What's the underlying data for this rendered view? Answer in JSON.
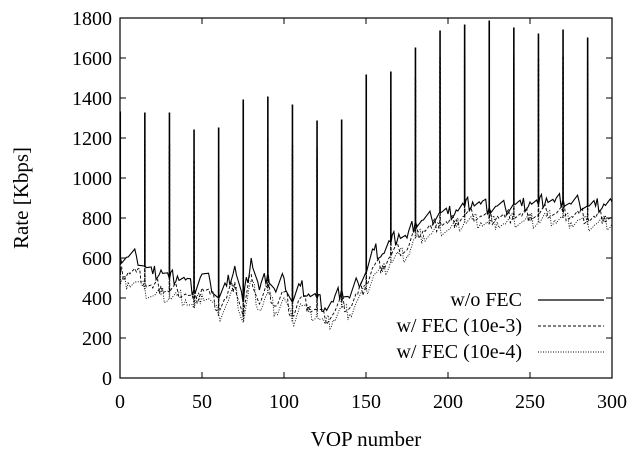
{
  "chart_data": {
    "type": "line",
    "title": "",
    "xlabel": "VOP number",
    "ylabel": "Rate [Kbps]",
    "xlim": [
      0,
      300
    ],
    "ylim": [
      0,
      1800
    ],
    "x_ticks": [
      0,
      50,
      100,
      150,
      200,
      250,
      300
    ],
    "y_ticks": [
      0,
      200,
      400,
      600,
      800,
      1000,
      1200,
      1400,
      1600,
      1800
    ],
    "grid": false,
    "legend_position": "lower-right",
    "spike_positions": [
      0,
      15,
      30,
      45,
      60,
      75,
      90,
      105,
      120,
      135,
      150,
      165,
      180,
      195,
      210,
      225,
      240,
      255,
      270,
      285
    ],
    "series": [
      {
        "name": "w/o FEC",
        "line_style": "solid",
        "color": "#000000",
        "spike_peaks": [
          1330,
          1325,
          1325,
          1240,
          1250,
          1390,
          1405,
          1365,
          1285,
          1290,
          1515,
          1530,
          1650,
          1735,
          1765,
          1785,
          1750,
          1720,
          1740,
          1700
        ],
        "x": [
          0,
          5,
          10,
          15,
          20,
          25,
          30,
          35,
          40,
          45,
          50,
          55,
          60,
          65,
          70,
          75,
          80,
          85,
          90,
          95,
          100,
          105,
          110,
          115,
          120,
          125,
          130,
          135,
          140,
          145,
          150,
          155,
          160,
          165,
          170,
          175,
          180,
          185,
          190,
          195,
          200,
          205,
          210,
          215,
          220,
          225,
          230,
          235,
          240,
          245,
          250,
          255,
          260,
          265,
          270,
          275,
          280,
          285,
          290,
          295,
          300
        ],
        "y": [
          600,
          605,
          610,
          560,
          520,
          540,
          500,
          510,
          490,
          440,
          520,
          480,
          400,
          460,
          560,
          380,
          600,
          440,
          520,
          430,
          500,
          380,
          460,
          420,
          400,
          350,
          380,
          440,
          400,
          480,
          530,
          640,
          620,
          680,
          720,
          700,
          780,
          790,
          800,
          830,
          820,
          840,
          860,
          880,
          870,
          850,
          860,
          850,
          870,
          860,
          880,
          870,
          900,
          880,
          890,
          870,
          880,
          860,
          860,
          870,
          880
        ]
      },
      {
        "name": "w/ FEC (10e-3)",
        "line_style": "dashed",
        "color": "#000000",
        "spike_peaks": [
          1200,
          1185,
          1170,
          1090,
          1060,
          1200,
          1200,
          1160,
          1150,
          1160,
          1350,
          1370,
          1500,
          1600,
          1610,
          1630,
          1620,
          1600,
          1610,
          1580
        ],
        "x": [
          0,
          5,
          10,
          15,
          20,
          25,
          30,
          35,
          40,
          45,
          50,
          55,
          60,
          65,
          70,
          75,
          80,
          85,
          90,
          95,
          100,
          105,
          110,
          115,
          120,
          125,
          130,
          135,
          140,
          145,
          150,
          155,
          160,
          165,
          170,
          175,
          180,
          185,
          190,
          195,
          200,
          205,
          210,
          215,
          220,
          225,
          230,
          235,
          240,
          245,
          250,
          255,
          260,
          265,
          270,
          275,
          280,
          285,
          290,
          295,
          300
        ],
        "y": [
          520,
          530,
          530,
          480,
          450,
          460,
          430,
          440,
          420,
          380,
          450,
          420,
          350,
          400,
          480,
          310,
          520,
          370,
          450,
          360,
          430,
          310,
          400,
          360,
          340,
          300,
          320,
          380,
          350,
          420,
          470,
          560,
          560,
          610,
          650,
          640,
          730,
          740,
          750,
          780,
          770,
          790,
          810,
          820,
          810,
          800,
          810,
          800,
          820,
          810,
          820,
          810,
          840,
          820,
          830,
          810,
          820,
          800,
          800,
          810,
          800
        ]
      },
      {
        "name": "w/ FEC (10e-4)",
        "line_style": "dotted",
        "color": "#000000",
        "spike_peaks": [
          1150,
          1140,
          1120,
          1050,
          1020,
          1150,
          1150,
          1110,
          1100,
          1110,
          1300,
          1320,
          1450,
          1550,
          1560,
          1580,
          1570,
          1550,
          1560,
          1530
        ],
        "x": [
          0,
          5,
          10,
          15,
          20,
          25,
          30,
          35,
          40,
          45,
          50,
          55,
          60,
          65,
          70,
          75,
          80,
          85,
          90,
          95,
          100,
          105,
          110,
          115,
          120,
          125,
          130,
          135,
          140,
          145,
          150,
          155,
          160,
          165,
          170,
          175,
          180,
          185,
          190,
          195,
          200,
          205,
          210,
          215,
          220,
          225,
          230,
          235,
          240,
          245,
          250,
          255,
          260,
          265,
          270,
          275,
          280,
          285,
          290,
          295,
          300
        ],
        "y": [
          470,
          480,
          480,
          440,
          410,
          420,
          400,
          410,
          390,
          350,
          420,
          390,
          310,
          370,
          450,
          280,
          490,
          340,
          420,
          330,
          400,
          280,
          370,
          330,
          310,
          270,
          290,
          350,
          320,
          390,
          440,
          520,
          530,
          580,
          620,
          610,
          700,
          710,
          720,
          750,
          740,
          760,
          780,
          790,
          780,
          770,
          780,
          770,
          790,
          780,
          790,
          780,
          810,
          790,
          800,
          780,
          790,
          770,
          770,
          780,
          770
        ]
      }
    ]
  }
}
